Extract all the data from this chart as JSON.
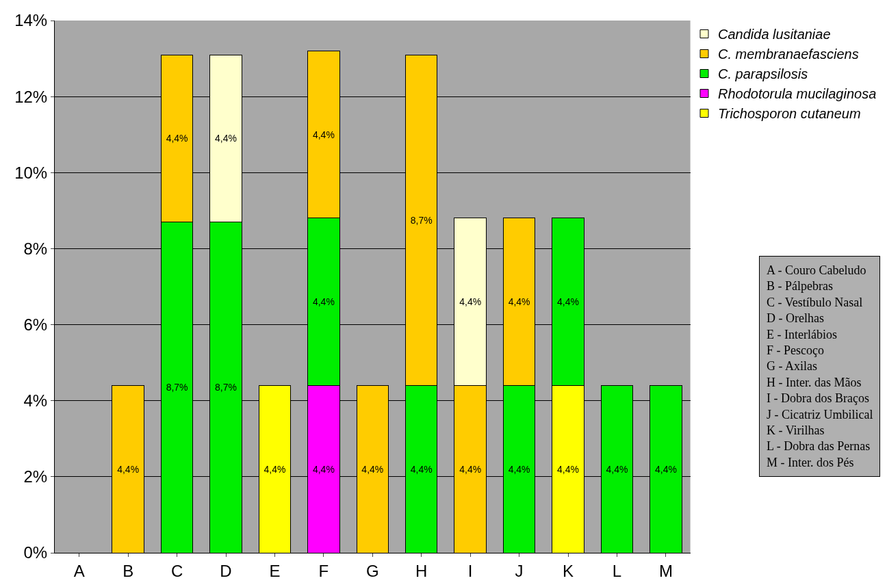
{
  "chart_data": {
    "type": "bar",
    "stacked": true,
    "categories": [
      "A",
      "B",
      "C",
      "D",
      "E",
      "F",
      "G",
      "H",
      "I",
      "J",
      "K",
      "L",
      "M"
    ],
    "series": [
      {
        "name": "Trichosporon cutaneum",
        "color": "#ffff00",
        "values": [
          null,
          null,
          null,
          null,
          4.4,
          null,
          null,
          null,
          null,
          null,
          4.4,
          null,
          null
        ],
        "value_labels": [
          null,
          null,
          null,
          null,
          "4,4%",
          null,
          null,
          null,
          null,
          null,
          "4,4%",
          null,
          null
        ]
      },
      {
        "name": "Rhodotorula mucilaginosa",
        "color": "#ff00ff",
        "values": [
          null,
          null,
          null,
          null,
          null,
          4.4,
          null,
          null,
          null,
          null,
          null,
          null,
          null
        ],
        "value_labels": [
          null,
          null,
          null,
          null,
          null,
          "4,4%",
          null,
          null,
          null,
          null,
          null,
          null,
          null
        ]
      },
      {
        "name": "C. parapsilosis",
        "color": "#00ee00",
        "values": [
          null,
          null,
          8.7,
          8.7,
          null,
          4.4,
          null,
          4.4,
          null,
          4.4,
          4.4,
          4.4,
          4.4
        ],
        "value_labels": [
          null,
          null,
          "8,7%",
          "8,7%",
          null,
          "4,4%",
          null,
          "4,4%",
          null,
          "4,4%",
          "4,4%",
          "4,4%",
          "4,4%"
        ]
      },
      {
        "name": "C. membranaefasciens",
        "color": "#ffcc00",
        "values": [
          null,
          4.4,
          4.4,
          null,
          null,
          4.4,
          4.4,
          8.7,
          4.4,
          4.4,
          null,
          null,
          null
        ],
        "value_labels": [
          null,
          "4,4%",
          "4,4%",
          null,
          null,
          "4,4%",
          "4,4%",
          "8,7%",
          "4,4%",
          "4,4%",
          null,
          null,
          null
        ]
      },
      {
        "name": "Candida lusitaniae",
        "color": "#ffffcc",
        "values": [
          null,
          null,
          null,
          4.4,
          null,
          null,
          null,
          null,
          4.4,
          null,
          null,
          null,
          null
        ],
        "value_labels": [
          null,
          null,
          null,
          "4,4%",
          null,
          null,
          null,
          null,
          "4,4%",
          null,
          null,
          null,
          null
        ]
      }
    ],
    "ylim": [
      0,
      14
    ],
    "yticks": [
      {
        "value": 0,
        "label": "0%"
      },
      {
        "value": 2,
        "label": "2%"
      },
      {
        "value": 4,
        "label": "4%"
      },
      {
        "value": 6,
        "label": "6%"
      },
      {
        "value": 8,
        "label": "8%"
      },
      {
        "value": 10,
        "label": "10%"
      },
      {
        "value": 12,
        "label": "12%"
      },
      {
        "value": 14,
        "label": "14%"
      }
    ],
    "grid": "y",
    "legend": "top right",
    "annotations": [
      "A - Couro Cabeludo",
      "B - Pálpebras",
      "C - Vestíbulo Nasal",
      "D - Orelhas",
      "E - Interlábios",
      "F - Pescoço",
      "G - Axilas",
      "H - Inter. das Mãos",
      "I - Dobra dos Braços",
      "J - Cicatriz Umbilical",
      "K - Virilhas",
      "L - Dobra das Pernas",
      "M - Inter. dos Pés"
    ]
  }
}
